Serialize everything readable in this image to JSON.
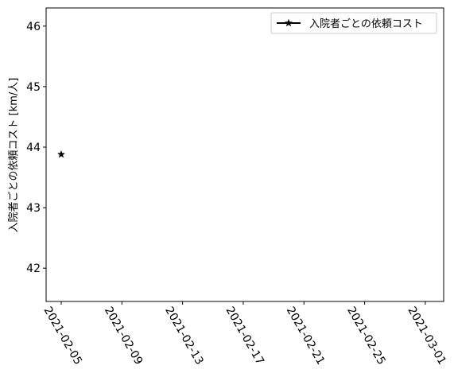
{
  "chart_data": {
    "type": "line",
    "title": "",
    "xlabel": "",
    "ylabel": "入院者ごとの依頼コスト [km/人]",
    "x_ticks": [
      "2021-02-05",
      "2021-02-09",
      "2021-02-13",
      "2021-02-17",
      "2021-02-21",
      "2021-02-25",
      "2021-03-01"
    ],
    "xlim": [
      "2021-02-05",
      "2021-03-01"
    ],
    "y_ticks": [
      "42",
      "43",
      "44",
      "45",
      "46"
    ],
    "ylim": [
      41.45,
      46.3
    ],
    "grid": false,
    "legend_position": "upper right",
    "series": [
      {
        "name": "入院者ごとの依頼コスト",
        "color": "#000000",
        "marker": "star",
        "points": [
          {
            "x": "2021-02-05",
            "y": 43.88
          }
        ]
      }
    ]
  }
}
